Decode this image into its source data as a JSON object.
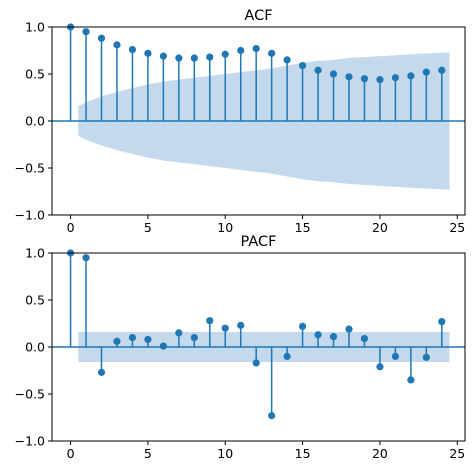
{
  "chart_data": [
    {
      "type": "stem",
      "title": "ACF",
      "xlim": [
        -1.2,
        25.5
      ],
      "ylim": [
        -1.0,
        1.0
      ],
      "xticks": [
        0,
        5,
        10,
        15,
        20,
        25
      ],
      "yticks": [
        -1.0,
        -0.5,
        0.0,
        0.5,
        1.0
      ],
      "ytick_labels": [
        "−1.0",
        "−0.5",
        "0.0",
        "0.5",
        "1.0"
      ],
      "x": [
        0,
        1,
        2,
        3,
        4,
        5,
        6,
        7,
        8,
        9,
        10,
        11,
        12,
        13,
        14,
        15,
        16,
        17,
        18,
        19,
        20,
        21,
        22,
        23,
        24
      ],
      "y": [
        1.0,
        0.95,
        0.88,
        0.81,
        0.76,
        0.72,
        0.69,
        0.67,
        0.67,
        0.68,
        0.71,
        0.75,
        0.77,
        0.72,
        0.65,
        0.59,
        0.54,
        0.5,
        0.47,
        0.45,
        0.44,
        0.46,
        0.48,
        0.52,
        0.54
      ],
      "confidence_band": {
        "x": [
          0.5,
          1,
          2,
          3,
          4,
          5,
          6,
          7,
          8,
          9,
          10,
          11,
          12,
          13,
          14,
          15,
          16,
          17,
          18,
          19,
          20,
          21,
          22,
          23,
          24.5
        ],
        "upper": [
          0.16,
          0.2,
          0.26,
          0.31,
          0.35,
          0.39,
          0.42,
          0.44,
          0.46,
          0.48,
          0.5,
          0.52,
          0.54,
          0.56,
          0.59,
          0.62,
          0.64,
          0.65,
          0.67,
          0.68,
          0.69,
          0.7,
          0.71,
          0.72,
          0.73
        ]
      },
      "colors": {
        "series": "#1f77b4",
        "band": "#c5d9ed"
      }
    },
    {
      "type": "stem",
      "title": "PACF",
      "xlim": [
        -1.2,
        25.5
      ],
      "ylim": [
        -1.0,
        1.0
      ],
      "xticks": [
        0,
        5,
        10,
        15,
        20,
        25
      ],
      "yticks": [
        -1.0,
        -0.5,
        0.0,
        0.5,
        1.0
      ],
      "ytick_labels": [
        "−1.0",
        "−0.5",
        "0.0",
        "0.5",
        "1.0"
      ],
      "x": [
        0,
        1,
        2,
        3,
        4,
        5,
        6,
        7,
        8,
        9,
        10,
        11,
        12,
        13,
        14,
        15,
        16,
        17,
        18,
        19,
        20,
        21,
        22,
        23,
        24
      ],
      "y": [
        1.0,
        0.95,
        -0.27,
        0.06,
        0.1,
        0.08,
        0.01,
        0.15,
        0.1,
        0.28,
        0.2,
        0.23,
        -0.17,
        -0.73,
        -0.1,
        0.22,
        0.13,
        0.11,
        0.19,
        0.09,
        -0.21,
        -0.1,
        -0.35,
        -0.11,
        0.27
      ],
      "confidence_band": {
        "x": [
          0.5,
          24.5
        ],
        "upper": [
          0.16,
          0.16
        ]
      },
      "colors": {
        "series": "#1f77b4",
        "band": "#c5d9ed"
      }
    }
  ]
}
